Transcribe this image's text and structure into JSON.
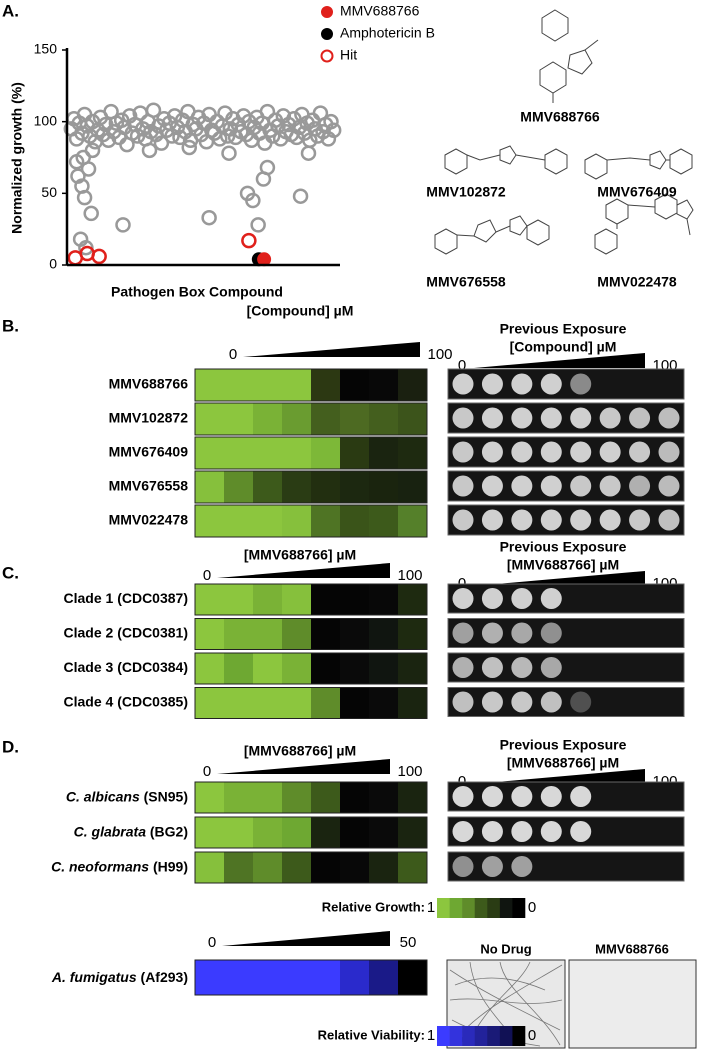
{
  "chart_data": {
    "type": "scatter",
    "panel_label": "A.",
    "ylabel": "Normalized growth (%)",
    "xlabel": "Pathogen Box Compound",
    "ylim": [
      0,
      150
    ],
    "yticks": [
      0,
      50,
      100,
      150
    ],
    "xlim": [
      0,
      400
    ],
    "series": [
      {
        "name": "MMV688766",
        "color": "#e0201b",
        "marker": "filled",
        "x": [
          293
        ],
        "values": [
          4
        ]
      },
      {
        "name": "Amphotericin B",
        "color": "#000000",
        "marker": "filled",
        "x": [
          285
        ],
        "values": [
          4
        ]
      },
      {
        "name": "Hit",
        "color": "#e0201b",
        "marker": "open",
        "x": [
          8,
          26,
          44,
          270
        ],
        "values": [
          5,
          8,
          6,
          17
        ]
      },
      {
        "color": "#999999",
        "marker": "open",
        "x": [
          2,
          6,
          10,
          14,
          18,
          22,
          26,
          30,
          34,
          38,
          42,
          46,
          50,
          54,
          58,
          62,
          66,
          70,
          74,
          78,
          82,
          86,
          90,
          94,
          98,
          102,
          106,
          110,
          114,
          118,
          122,
          126,
          130,
          134,
          138,
          142,
          146,
          150,
          154,
          158,
          162,
          166,
          170,
          174,
          178,
          182,
          186,
          190,
          194,
          198,
          202,
          206,
          210,
          214,
          218,
          222,
          226,
          230,
          234,
          238,
          242,
          246,
          250,
          254,
          258,
          262,
          266,
          270,
          274,
          278,
          282,
          286,
          290,
          294,
          298,
          302,
          306,
          310,
          314,
          318,
          322,
          326,
          330,
          334,
          338,
          342,
          346,
          350,
          354,
          358,
          362,
          366,
          370,
          374,
          378,
          382,
          386,
          390,
          394,
          398,
          12,
          18,
          22,
          28,
          32,
          16,
          24,
          80,
          210,
          268,
          276,
          284,
          298,
          348,
          292,
          20,
          34,
          10,
          360,
          120,
          180,
          240
        ],
        "values": [
          95,
          102,
          88,
          99,
          92,
          105,
          97,
          90,
          100,
          86,
          94,
          103,
          91,
          98,
          87,
          107,
          93,
          99,
          89,
          101,
          96,
          84,
          104,
          92,
          98,
          90,
          106,
          95,
          88,
          100,
          93,
          108,
          91,
          97,
          85,
          102,
          94,
          99,
          90,
          104,
          96,
          89,
          101,
          93,
          107,
          87,
          98,
          95,
          103,
          91,
          99,
          86,
          105,
          94,
          92,
          100,
          88,
          97,
          106,
          90,
          95,
          102,
          89,
          98,
          93,
          104,
          91,
          100,
          87,
          96,
          103,
          92,
          99,
          85,
          107,
          94,
          90,
          101,
          97,
          88,
          104,
          93,
          98,
          91,
          102,
          89,
          96,
          105,
          92,
          99,
          87,
          101,
          95,
          90,
          106,
          93,
          98,
          88,
          100,
          94,
          62,
          55,
          47,
          67,
          36,
          18,
          12,
          28,
          33,
          50,
          45,
          28,
          68,
          48,
          60,
          75,
          80,
          72,
          78,
          80,
          82,
          78
        ]
      }
    ]
  },
  "structures": [
    "MMV688766",
    "MMV102872",
    "MMV676409",
    "MMV676558",
    "MMV022478"
  ],
  "panel_b": {
    "letter": "B.",
    "heatmap_title": "[Compound] µM",
    "heatmap_min": 0,
    "heatmap_max": 100,
    "exposure_title": [
      "Previous Exposure",
      "[Compound] µM"
    ],
    "exposure_min": 0,
    "exposure_max": 100,
    "rows": [
      {
        "label": "MMV688766",
        "cells": [
          "#8cc63e",
          "#8cc63e",
          "#8cc63e",
          "#8cc63e",
          "#2c3812",
          "#050505",
          "#080808",
          "#1a2010"
        ],
        "spots": [
          "#d0d0d0",
          "#d0d0d0",
          "#d0d0d0",
          "#d0d0d0",
          "#8a8a8a",
          null,
          null,
          null
        ]
      },
      {
        "label": "MMV102872",
        "cells": [
          "#8cc63e",
          "#8cc63e",
          "#7ab236",
          "#6a9c30",
          "#445f1e",
          "#4d6a22",
          "#445f1e",
          "#3c541b"
        ],
        "spots": [
          "#c8c8c8",
          "#d0d0d0",
          "#d0d0d0",
          "#d0d0d0",
          "#d0d0d0",
          "#c8c8c8",
          "#c0c0c0",
          "#bdbdbd"
        ]
      },
      {
        "label": "MMV676409",
        "cells": [
          "#8cc63e",
          "#8cc63e",
          "#8cc63e",
          "#8cc63e",
          "#7db838",
          "#2a3a12",
          "#1a2410",
          "#1e2a10"
        ],
        "spots": [
          "#c8c8c8",
          "#d0d0d0",
          "#d0d0d0",
          "#d0d0d0",
          "#d0d0d0",
          "#d0d0d0",
          "#c8c8c8",
          "#bbbbbb"
        ]
      },
      {
        "label": "MMV676558",
        "cells": [
          "#86c03c",
          "#5f8c2a",
          "#3d5a1b",
          "#2a3c14",
          "#222f10",
          "#1c2810",
          "#1a240e",
          "#182210"
        ],
        "spots": [
          "#c8c8c8",
          "#d0d0d0",
          "#d0d0d0",
          "#d0d0d0",
          "#c8c8c8",
          "#c8c8c8",
          "#b0b0b0",
          "#bbbbbb"
        ]
      },
      {
        "label": "MMV022478",
        "cells": [
          "#8cc63e",
          "#8cc63e",
          "#8cc63e",
          "#86c03c",
          "#4f7424",
          "#3a5419",
          "#3d5a1b",
          "#55802a"
        ],
        "spots": [
          "#c8c8c8",
          "#d0d0d0",
          "#d0d0d0",
          "#d0d0d0",
          "#d0d0d0",
          "#d0d0d0",
          "#c8c8c8",
          "#c0c0c0"
        ]
      }
    ]
  },
  "panel_c": {
    "letter": "C.",
    "heatmap_title": "[MMV688766] µM",
    "heatmap_min": 0,
    "heatmap_max": 100,
    "exposure_title": [
      "Previous Exposure",
      "[MMV688766] µM"
    ],
    "exposure_min": 0,
    "exposure_max": 100,
    "rows": [
      {
        "label": "Clade 1 (CDC0387)",
        "cells": [
          "#8cc63e",
          "#8cc63e",
          "#7ab236",
          "#86c03c",
          "#050505",
          "#050505",
          "#080808",
          "#1e2a10"
        ],
        "spots": [
          "#d0d0d0",
          "#d0d0d0",
          "#d0d0d0",
          "#d0d0d0",
          null,
          null,
          null,
          null
        ]
      },
      {
        "label": "Clade 2 (CDC0381)",
        "cells": [
          "#8cc63e",
          "#7ab236",
          "#7ab236",
          "#5f8c2a",
          "#050505",
          "#0a0a0a",
          "#101510",
          "#1e2a10"
        ],
        "spots": [
          "#a0a0a0",
          "#b0b0b0",
          "#a8a8a8",
          "#909090",
          null,
          null,
          null,
          null
        ]
      },
      {
        "label": "Clade 3 (CDC0384)",
        "cells": [
          "#8cc63e",
          "#6ea832",
          "#8cc63e",
          "#7ab236",
          "#050505",
          "#0a0a0a",
          "#101510",
          "#1a2410"
        ],
        "spots": [
          "#b0b0b0",
          "#c0c0c0",
          "#b8b8b8",
          "#a8a8a8",
          null,
          null,
          null,
          null
        ]
      },
      {
        "label": "Clade 4 (CDC0385)",
        "cells": [
          "#8cc63e",
          "#8cc63e",
          "#8cc63e",
          "#8cc63e",
          "#5f8c2a",
          "#050505",
          "#0a0a0a",
          "#1a2410"
        ],
        "spots": [
          "#c0c0c0",
          "#c8c8c8",
          "#c8c8c8",
          "#c0c0c0",
          "#505050",
          null,
          null,
          null
        ]
      }
    ]
  },
  "panel_d": {
    "letter": "D.",
    "heatmap_title": "[MMV688766] µM",
    "heatmap_min": 0,
    "heatmap_max": 100,
    "exposure_title": [
      "Previous Exposure",
      "[MMV688766] µM"
    ],
    "exposure_min": 0,
    "exposure_max": 100,
    "rows": [
      {
        "species": "C. albicans",
        "strain": "(SN95)",
        "cells": [
          "#8cc63e",
          "#7ab236",
          "#7ab236",
          "#5f8c2a",
          "#3d5a1b",
          "#050505",
          "#0a0a0a",
          "#1a2410"
        ],
        "spots": [
          "#d8d8d8",
          "#d8d8d8",
          "#d8d8d8",
          "#d8d8d8",
          "#d8d8d8",
          null,
          null,
          null
        ]
      },
      {
        "species": "C. glabrata",
        "strain": "(BG2)",
        "cells": [
          "#8cc63e",
          "#8cc63e",
          "#7ab236",
          "#6ea832",
          "#1a2410",
          "#050505",
          "#0a0a0a",
          "#1a2410"
        ],
        "spots": [
          "#d8d8d8",
          "#d8d8d8",
          "#d8d8d8",
          "#d8d8d8",
          "#d8d8d8",
          null,
          null,
          null
        ]
      },
      {
        "species": "C. neoformans",
        "strain": "(H99)",
        "cells": [
          "#86c03c",
          "#4f7424",
          "#5f8c2a",
          "#3d5a1b",
          "#050505",
          "#080808",
          "#1a2410",
          "#3d5a1b"
        ],
        "spots": [
          "#909090",
          "#a0a0a0",
          "#a0a0a0",
          null,
          null,
          null,
          null,
          null
        ]
      }
    ],
    "growth_legend": {
      "label": "Relative Growth:",
      "high": 1,
      "low": 0,
      "colors": [
        "#8cc63e",
        "#6ea832",
        "#5f8c2a",
        "#3d5a1b",
        "#2a3c14",
        "#101510",
        "#000000"
      ]
    },
    "fumigatus": {
      "species": "A. fumigatus",
      "strain": "(Af293)",
      "min": 0,
      "max": 50,
      "cells": [
        "#3b3bff",
        "#3b3bff",
        "#3b3bff",
        "#3b3bff",
        "#3b3bff",
        "#2a2acc",
        "#1a1a88",
        "#000000"
      ]
    },
    "viability_legend": {
      "label": "Relative Viability:",
      "high": 1,
      "low": 0,
      "colors": [
        "#3b3bff",
        "#3333dd",
        "#2a2abb",
        "#22229a",
        "#1a1a77",
        "#111155",
        "#000000"
      ]
    },
    "images": [
      "No Drug",
      "MMV688766"
    ]
  }
}
